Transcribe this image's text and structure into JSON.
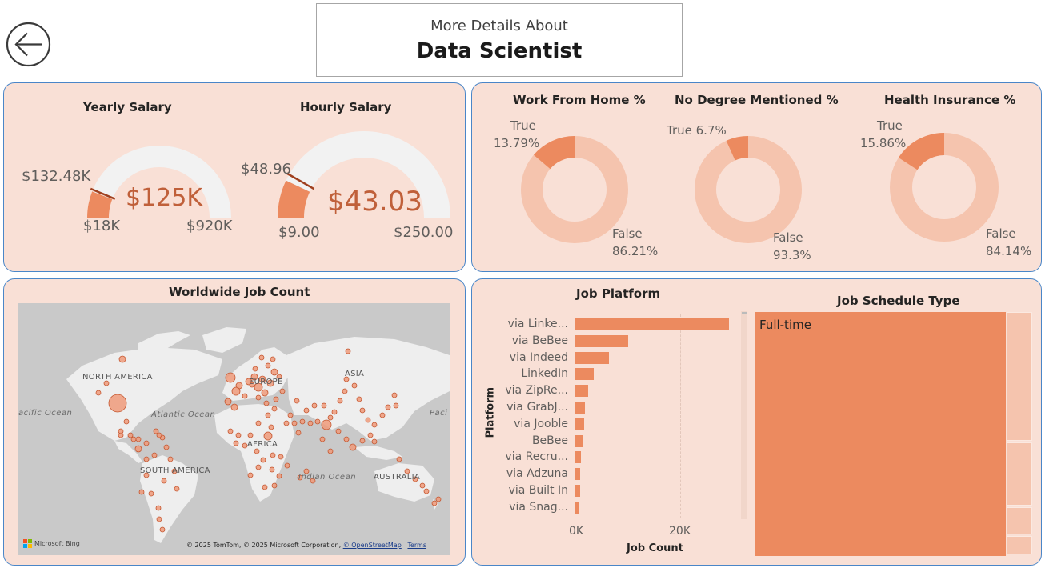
{
  "header": {
    "subtitle": "More Details About",
    "title": "Data Scientist"
  },
  "colors": {
    "accent": "#ec8a5f",
    "light_accent": "#f5c4ae",
    "panel_bg": "#f9e0d6",
    "panel_border": "#4a86c8",
    "gauge_track": "#f2f2f2"
  },
  "salary": {
    "yearly": {
      "title": "Yearly Salary",
      "value_label": "$125K",
      "min_label": "$18K",
      "max_label": "$920K",
      "target_label": "$132.48K",
      "value": 125,
      "min": 18,
      "max": 920,
      "target": 132.48
    },
    "hourly": {
      "title": "Hourly Salary",
      "value_label": "$43.03",
      "min_label": "$9.00",
      "max_label": "$250.00",
      "target_label": "$48.96",
      "value": 43.03,
      "min": 9,
      "max": 250,
      "target": 48.96
    }
  },
  "donuts": {
    "wfh": {
      "title": "Work From Home %",
      "true_label": "True",
      "true_pct_label": "13.79%",
      "false_label": "False",
      "false_pct_label": "86.21%",
      "true_pct": 13.79
    },
    "degree": {
      "title": "No Degree Mentioned %",
      "true_label": "True 6.7%",
      "false_label": "False",
      "false_pct_label": "93.3%",
      "true_pct": 6.7
    },
    "insurance": {
      "title": "Health Insurance %",
      "true_label": "True",
      "true_pct_label": "15.86%",
      "false_label": "False",
      "false_pct_label": "84.14%",
      "true_pct": 15.86
    }
  },
  "map": {
    "title": "Worldwide Job Count",
    "labels": {
      "north_america": "NORTH AMERICA",
      "south_america": "SOUTH AMERICA",
      "europe": "EUROPE",
      "asia": "ASIA",
      "africa": "AFRICA",
      "australia": "AUSTRALIA"
    },
    "oceans": {
      "pacific_left": "acific Ocean",
      "atlantic": "Atlantic Ocean",
      "indian": "Indian Ocean",
      "pacific_right": "Paci"
    },
    "brand": "Microsoft Bing",
    "copyright": "© 2025 TomTom, © 2025 Microsoft Corporation, ",
    "osm": "© OpenStreetMap",
    "terms": "Terms"
  },
  "chart_data": [
    {
      "type": "bar",
      "title": "Job Platform",
      "xlabel": "Job Count",
      "ylabel": "Platform",
      "categories": [
        "via Linke...",
        "via BeBee",
        "via Indeed",
        "LinkedIn",
        "via ZipRe...",
        "via GrabJ...",
        "via Jooble",
        "BeBee",
        "via Recru...",
        "via Adzuna",
        "via Built In",
        "via Snag..."
      ],
      "values": [
        29500,
        10100,
        6400,
        3500,
        2500,
        1900,
        1700,
        1600,
        1000,
        900,
        900,
        800
      ],
      "xticks": [
        "0K",
        "20K"
      ],
      "xlim": [
        0,
        31000
      ],
      "grid": true
    },
    {
      "type": "treemap",
      "title": "Job Schedule Type",
      "categories": [
        "Full-time",
        "",
        "",
        "",
        ""
      ],
      "values": [
        94,
        3.2,
        1.6,
        0.7,
        0.5
      ]
    }
  ]
}
